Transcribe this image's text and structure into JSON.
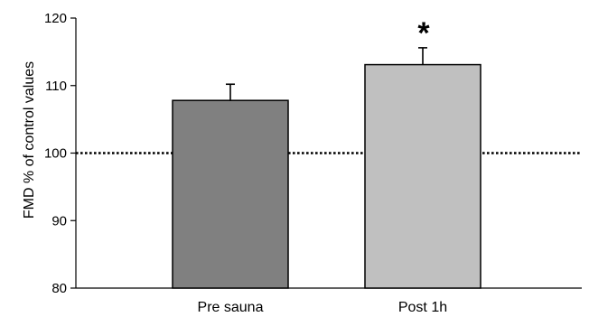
{
  "chart_data": {
    "type": "bar",
    "categories": [
      "Pre sauna",
      "Post 1h"
    ],
    "values": [
      107.8,
      113.1
    ],
    "error_bars": [
      2.4,
      2.5
    ],
    "ylabel": "FMD  % of control values",
    "ylim": [
      80,
      120
    ],
    "yticks": [
      "80",
      "90",
      "100",
      "110",
      "120"
    ],
    "reference_line": 100,
    "annotations": [
      {
        "category": "Post 1h",
        "text": "*"
      }
    ],
    "bar_colors": [
      "#808080",
      "#c0c0c0"
    ],
    "grid": false
  }
}
